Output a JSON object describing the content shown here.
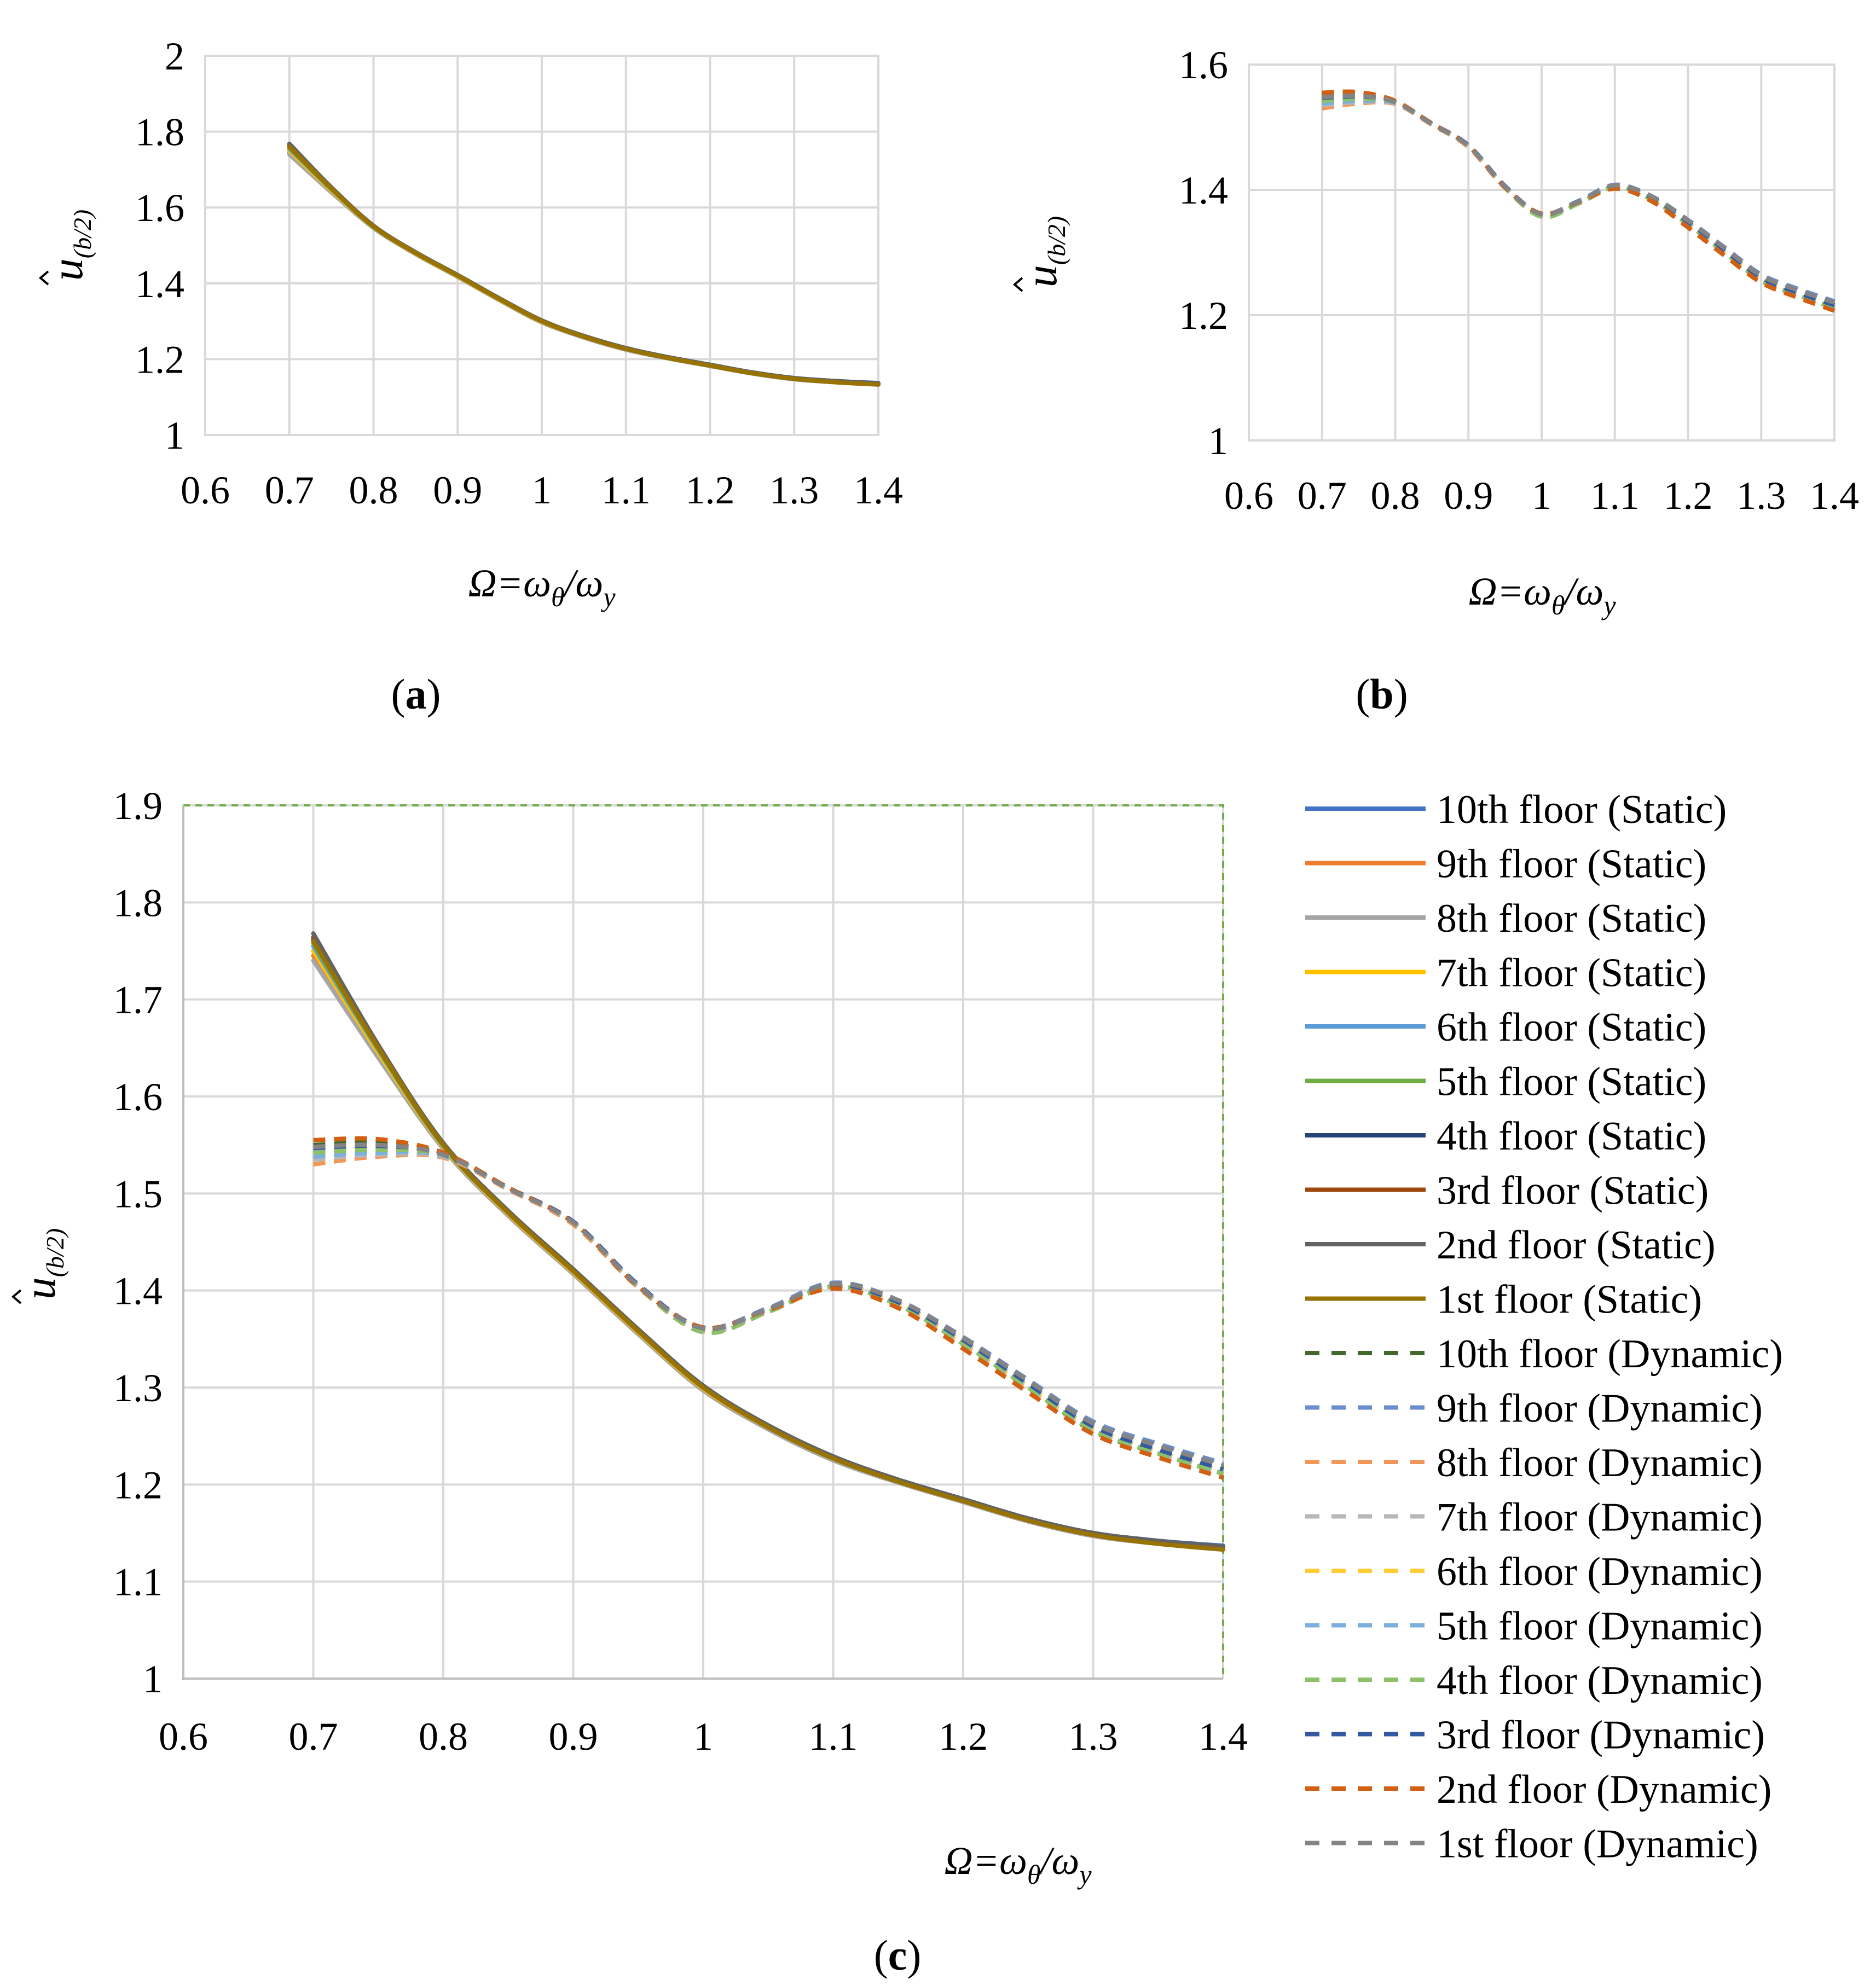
{
  "chart_data": [
    {
      "id": "a",
      "type": "line",
      "caption": "a",
      "xlabel": {
        "main": "Ω=ω",
        "sub1": "θ",
        "mid": "/ω",
        "sub2": "y"
      },
      "ylabel": {
        "main": "u",
        "sub": "(b/2)"
      },
      "xlim": [
        0.6,
        1.4
      ],
      "ylim": [
        1,
        2
      ],
      "x_ticks": [
        "0.6",
        "0.7",
        "0.8",
        "0.9",
        "1",
        "1.1",
        "1.2",
        "1.3",
        "1.4"
      ],
      "y_ticks": [
        "1",
        "1.2",
        "1.4",
        "1.6",
        "1.8",
        "2"
      ],
      "x": [
        0.7,
        0.75,
        0.8,
        0.85,
        0.9,
        0.95,
        1.0,
        1.05,
        1.1,
        1.15,
        1.2,
        1.25,
        1.3,
        1.35,
        1.4
      ],
      "series": [
        {
          "name": "10th floor (Static)",
          "color": "#4472c4",
          "dash": false,
          "values": [
            1.76,
            1.65,
            1.55,
            1.48,
            1.42,
            1.358,
            1.3,
            1.26,
            1.228,
            1.205,
            1.185,
            1.165,
            1.15,
            1.142,
            1.137
          ]
        },
        {
          "name": "9th floor (Static)",
          "color": "#ed7d31",
          "dash": false,
          "values": [
            1.745,
            1.642,
            1.547,
            1.478,
            1.418,
            1.356,
            1.298,
            1.258,
            1.226,
            1.203,
            1.183,
            1.163,
            1.148,
            1.14,
            1.134
          ]
        },
        {
          "name": "8th floor (Static)",
          "color": "#a5a5a5",
          "dash": false,
          "values": [
            1.74,
            1.64,
            1.546,
            1.477,
            1.417,
            1.355,
            1.297,
            1.257,
            1.225,
            1.202,
            1.182,
            1.162,
            1.147,
            1.139,
            1.133
          ]
        },
        {
          "name": "7th floor (Static)",
          "color": "#ffc000",
          "dash": false,
          "values": [
            1.75,
            1.645,
            1.548,
            1.479,
            1.419,
            1.357,
            1.299,
            1.259,
            1.227,
            1.204,
            1.184,
            1.164,
            1.149,
            1.141,
            1.135
          ]
        },
        {
          "name": "6th floor (Static)",
          "color": "#5b9bd5",
          "dash": false,
          "values": [
            1.755,
            1.648,
            1.549,
            1.48,
            1.42,
            1.358,
            1.3,
            1.26,
            1.228,
            1.205,
            1.185,
            1.165,
            1.15,
            1.142,
            1.136
          ]
        },
        {
          "name": "5th floor (Static)",
          "color": "#70ad47",
          "dash": false,
          "values": [
            1.758,
            1.649,
            1.55,
            1.48,
            1.42,
            1.358,
            1.3,
            1.26,
            1.228,
            1.204,
            1.184,
            1.164,
            1.149,
            1.141,
            1.135
          ]
        },
        {
          "name": "4th floor (Static)",
          "color": "#264478",
          "dash": false,
          "values": [
            1.762,
            1.651,
            1.551,
            1.481,
            1.421,
            1.359,
            1.301,
            1.261,
            1.229,
            1.205,
            1.185,
            1.165,
            1.15,
            1.142,
            1.136
          ]
        },
        {
          "name": "3rd floor (Static)",
          "color": "#9e480e",
          "dash": false,
          "values": [
            1.764,
            1.652,
            1.551,
            1.481,
            1.421,
            1.359,
            1.301,
            1.26,
            1.228,
            1.204,
            1.184,
            1.164,
            1.149,
            1.141,
            1.135
          ]
        },
        {
          "name": "2nd floor (Static)",
          "color": "#636363",
          "dash": false,
          "values": [
            1.768,
            1.653,
            1.552,
            1.482,
            1.422,
            1.36,
            1.302,
            1.261,
            1.229,
            1.205,
            1.185,
            1.165,
            1.15,
            1.142,
            1.136
          ]
        },
        {
          "name": "1st floor (Static)",
          "color": "#997300",
          "dash": false,
          "values": [
            1.76,
            1.65,
            1.55,
            1.48,
            1.42,
            1.358,
            1.3,
            1.259,
            1.227,
            1.203,
            1.183,
            1.163,
            1.148,
            1.139,
            1.133
          ]
        }
      ]
    },
    {
      "id": "b",
      "type": "line",
      "caption": "b",
      "xlabel": {
        "main": "Ω=ω",
        "sub1": "θ",
        "mid": "/ω",
        "sub2": "y"
      },
      "ylabel": {
        "main": "u",
        "sub": "(b/2)"
      },
      "xlim": [
        0.6,
        1.4
      ],
      "ylim": [
        1,
        1.6
      ],
      "x_ticks": [
        "0.6",
        "0.7",
        "0.8",
        "0.9",
        "1",
        "1.1",
        "1.2",
        "1.3",
        "1.4"
      ],
      "y_ticks": [
        "1",
        "1.2",
        "1.4",
        "1.6"
      ],
      "x": [
        0.7,
        0.75,
        0.8,
        0.85,
        0.9,
        0.95,
        1.0,
        1.05,
        1.1,
        1.15,
        1.2,
        1.25,
        1.3,
        1.35,
        1.4
      ],
      "series": [
        {
          "name": "10th floor (Dynamic)",
          "color": "#43682b",
          "dash": true,
          "values": [
            1.55,
            1.552,
            1.54,
            1.505,
            1.47,
            1.405,
            1.36,
            1.38,
            1.405,
            1.385,
            1.345,
            1.3,
            1.255,
            1.232,
            1.212
          ]
        },
        {
          "name": "9th floor (Dynamic)",
          "color": "#698ed0",
          "dash": true,
          "values": [
            1.545,
            1.548,
            1.54,
            1.506,
            1.471,
            1.406,
            1.362,
            1.382,
            1.408,
            1.39,
            1.352,
            1.308,
            1.265,
            1.242,
            1.222
          ]
        },
        {
          "name": "8th floor (Dynamic)",
          "color": "#f1975a",
          "dash": true,
          "values": [
            1.53,
            1.538,
            1.537,
            1.504,
            1.468,
            1.403,
            1.358,
            1.378,
            1.403,
            1.384,
            1.344,
            1.299,
            1.255,
            1.231,
            1.21
          ]
        },
        {
          "name": "7th floor (Dynamic)",
          "color": "#b7b7b7",
          "dash": true,
          "values": [
            1.535,
            1.54,
            1.538,
            1.505,
            1.47,
            1.405,
            1.36,
            1.38,
            1.405,
            1.387,
            1.347,
            1.302,
            1.258,
            1.234,
            1.213
          ]
        },
        {
          "name": "6th floor (Dynamic)",
          "color": "#ffcd33",
          "dash": true,
          "values": [
            1.54,
            1.543,
            1.539,
            1.505,
            1.47,
            1.405,
            1.36,
            1.38,
            1.405,
            1.386,
            1.346,
            1.301,
            1.257,
            1.233,
            1.212
          ]
        },
        {
          "name": "5th floor (Dynamic)",
          "color": "#7cafdd",
          "dash": true,
          "values": [
            1.538,
            1.542,
            1.539,
            1.505,
            1.47,
            1.405,
            1.359,
            1.379,
            1.405,
            1.386,
            1.346,
            1.301,
            1.257,
            1.233,
            1.212
          ]
        },
        {
          "name": "4th floor (Dynamic)",
          "color": "#8cc168",
          "dash": true,
          "values": [
            1.542,
            1.545,
            1.54,
            1.505,
            1.47,
            1.404,
            1.357,
            1.378,
            1.404,
            1.385,
            1.345,
            1.3,
            1.256,
            1.232,
            1.211
          ]
        },
        {
          "name": "3rd floor (Dynamic)",
          "color": "#335aa1",
          "dash": true,
          "values": [
            1.547,
            1.549,
            1.541,
            1.506,
            1.471,
            1.406,
            1.361,
            1.381,
            1.406,
            1.388,
            1.349,
            1.304,
            1.26,
            1.236,
            1.216
          ]
        },
        {
          "name": "2nd floor (Dynamic)",
          "color": "#d26012",
          "dash": true,
          "values": [
            1.555,
            1.556,
            1.542,
            1.506,
            1.47,
            1.404,
            1.362,
            1.38,
            1.402,
            1.382,
            1.34,
            1.295,
            1.252,
            1.228,
            1.207
          ]
        },
        {
          "name": "1st floor (Dynamic)",
          "color": "#848484",
          "dash": true,
          "values": [
            1.548,
            1.55,
            1.54,
            1.505,
            1.47,
            1.405,
            1.361,
            1.381,
            1.407,
            1.39,
            1.351,
            1.307,
            1.263,
            1.24,
            1.22
          ]
        }
      ]
    },
    {
      "id": "c",
      "type": "line",
      "caption": "c",
      "xlabel": {
        "main": "Ω=ω",
        "sub1": "θ",
        "mid": "/ω",
        "sub2": "y"
      },
      "ylabel": {
        "main": "u",
        "sub": "(b/2)"
      },
      "xlim": [
        0.6,
        1.4
      ],
      "ylim": [
        1,
        1.9
      ],
      "x_ticks": [
        "0.6",
        "0.7",
        "0.8",
        "0.9",
        "1",
        "1.1",
        "1.2",
        "1.3",
        "1.4"
      ],
      "y_ticks": [
        "1",
        "1.1",
        "1.2",
        "1.3",
        "1.4",
        "1.5",
        "1.6",
        "1.7",
        "1.8",
        "1.9"
      ],
      "legend_position": "right",
      "series_ref": [
        "a",
        "b"
      ]
    }
  ]
}
